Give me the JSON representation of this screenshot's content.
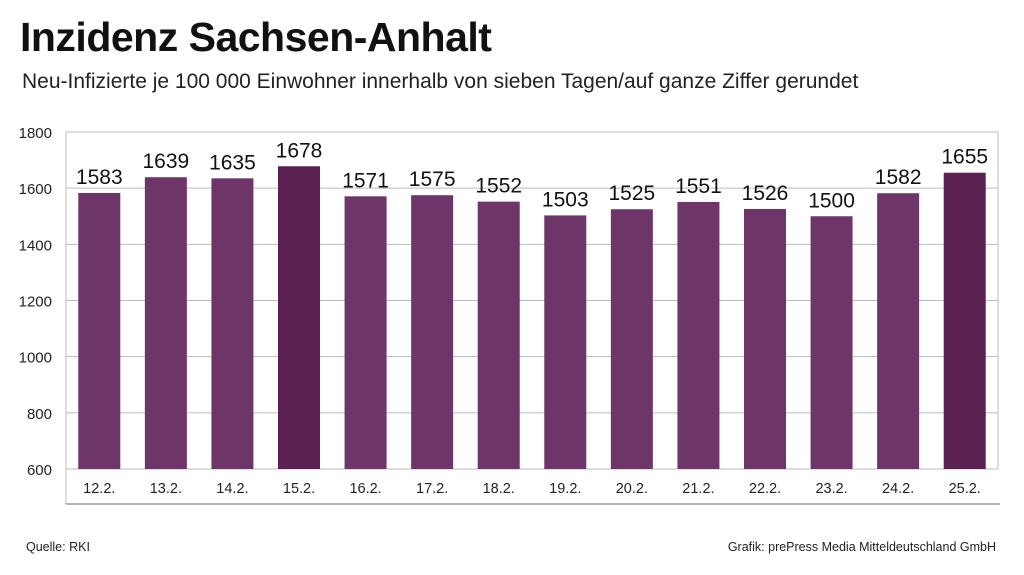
{
  "header": {
    "title": "Inzidenz Sachsen-Anhalt",
    "subtitle": "Neu-Infizierte je 100 000 Einwohner innerhalb von sieben Tagen/auf ganze Ziffer gerundet"
  },
  "footer": {
    "source": "Quelle: RKI",
    "credit": "Grafik: prePress Media Mitteldeutschland GmbH"
  },
  "colors": {
    "bar_default": "#6e3668",
    "bar_highlight": "#5a2050",
    "grid": "#bbbbbb"
  },
  "chart_data": {
    "type": "bar",
    "title": "Inzidenz Sachsen-Anhalt",
    "subtitle": "Neu-Infizierte je 100 000 Einwohner innerhalb von sieben Tagen/auf ganze Ziffer gerundet",
    "xlabel": "",
    "ylabel": "",
    "categories": [
      "12.2.",
      "13.2.",
      "14.2.",
      "15.2.",
      "16.2.",
      "17.2.",
      "18.2.",
      "19.2.",
      "20.2.",
      "21.2.",
      "22.2.",
      "23.2.",
      "24.2.",
      "25.2."
    ],
    "values": [
      1583,
      1639,
      1635,
      1678,
      1571,
      1575,
      1552,
      1503,
      1525,
      1551,
      1526,
      1500,
      1582,
      1655
    ],
    "ylim": [
      600,
      1800
    ],
    "yticks": [
      600,
      800,
      1000,
      1200,
      1400,
      1600,
      1800
    ],
    "highlight_categories": [
      "15.2.",
      "25.2."
    ],
    "grid": true,
    "data_labels": true
  }
}
